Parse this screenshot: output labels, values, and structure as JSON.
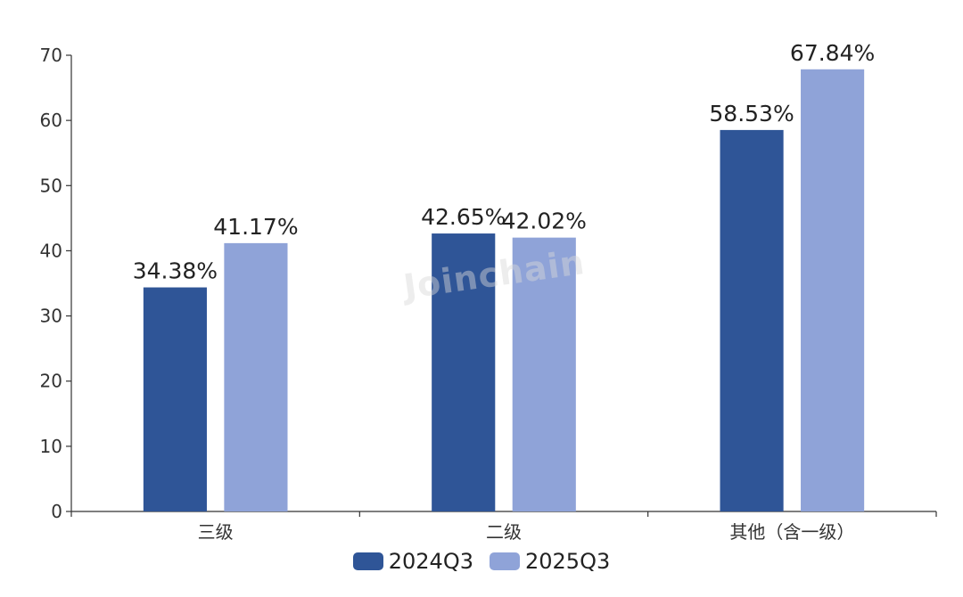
{
  "chart_data": {
    "type": "bar",
    "categories": [
      "三级",
      "二级",
      "其他（含一级）"
    ],
    "series": [
      {
        "name": "2024Q3",
        "values": [
          34.38,
          42.65,
          58.53
        ],
        "color": "#2f5597"
      },
      {
        "name": "2025Q3",
        "values": [
          41.17,
          42.02,
          67.84
        ],
        "color": "#8fa3d8"
      }
    ],
    "data_labels": [
      [
        "34.38%",
        "42.65%",
        "58.53%"
      ],
      [
        "41.17%",
        "42.02%",
        "67.84%"
      ]
    ],
    "ylim": [
      0,
      70
    ],
    "yticks": [
      0,
      10,
      20,
      30,
      40,
      50,
      60,
      70
    ],
    "ytick_labels": [
      "0",
      "10",
      "20",
      "30",
      "40",
      "50",
      "60",
      "70"
    ],
    "legend_position": "bottom-center",
    "grid": false
  },
  "watermark": "Joinchain"
}
